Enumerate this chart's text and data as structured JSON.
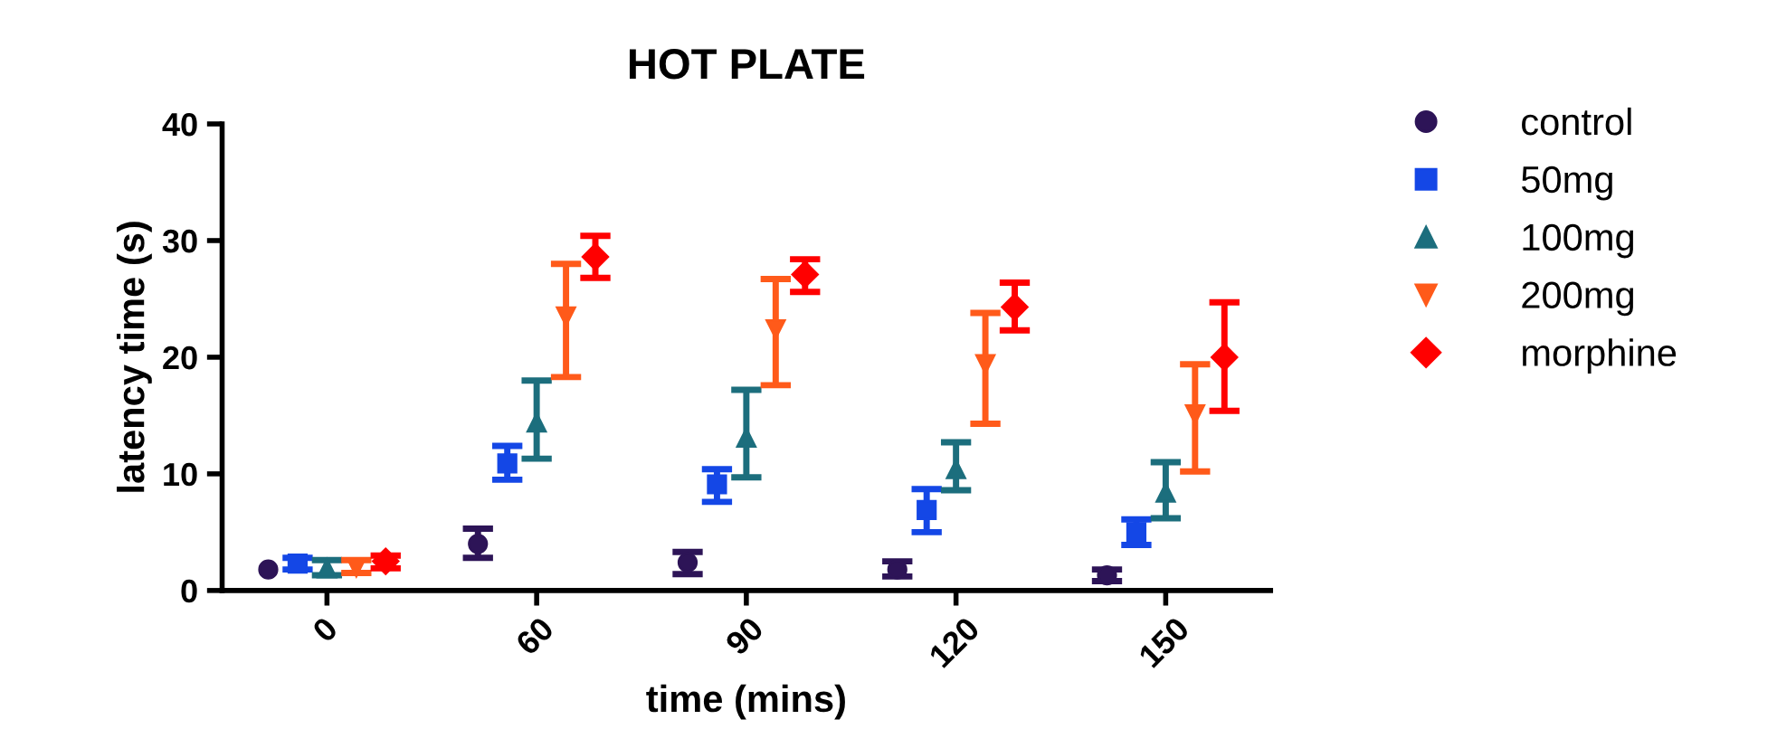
{
  "chart_data": {
    "type": "scatter",
    "title": "HOT PLATE",
    "xlabel": "time (mins)",
    "ylabel": "latency time (s)",
    "categories": [
      "0",
      "60",
      "90",
      "120",
      "150"
    ],
    "series": [
      {
        "name": "control",
        "color": "#2d1457",
        "marker": "circle",
        "values": [
          1.8,
          4.0,
          2.4,
          1.8,
          1.3
        ],
        "errors": [
          null,
          [
            2.8,
            5.3
          ],
          [
            1.4,
            3.3
          ],
          [
            1.2,
            2.5
          ],
          [
            0.8,
            1.8
          ]
        ]
      },
      {
        "name": "50mg",
        "color": "#1447e6",
        "marker": "square",
        "values": [
          2.3,
          10.9,
          9.1,
          6.9,
          5.0
        ],
        "errors": [
          [
            1.8,
            2.8
          ],
          [
            9.5,
            12.4
          ],
          [
            7.6,
            10.4
          ],
          [
            5.0,
            8.7
          ],
          [
            3.9,
            6.1
          ]
        ]
      },
      {
        "name": "100mg",
        "color": "#1c6e7d",
        "marker": "triangle",
        "values": [
          1.9,
          14.4,
          13.1,
          10.4,
          8.4
        ],
        "errors": [
          [
            1.3,
            2.6
          ],
          [
            11.3,
            18.0
          ],
          [
            9.7,
            17.2
          ],
          [
            8.6,
            12.7
          ],
          [
            6.2,
            11.0
          ]
        ]
      },
      {
        "name": "200mg",
        "color": "#ff5a1a",
        "marker": "triangle-down",
        "values": [
          2.0,
          23.5,
          22.4,
          19.4,
          15.1
        ],
        "errors": [
          [
            1.5,
            2.6
          ],
          [
            18.3,
            28.0
          ],
          [
            17.6,
            26.7
          ],
          [
            14.3,
            23.8
          ],
          [
            10.2,
            19.4
          ]
        ]
      },
      {
        "name": "morphine",
        "color": "#ff0000",
        "marker": "diamond",
        "values": [
          2.5,
          28.6,
          27.1,
          24.3,
          20.0
        ],
        "errors": [
          [
            1.9,
            3.0
          ],
          [
            26.8,
            30.4
          ],
          [
            25.6,
            28.4
          ],
          [
            22.3,
            26.4
          ],
          [
            15.4,
            24.7
          ]
        ]
      }
    ],
    "ylim": [
      0,
      40
    ],
    "yticks": [
      0,
      10,
      20,
      30,
      40
    ],
    "grid": false,
    "legend": "right",
    "line_style": "none"
  }
}
